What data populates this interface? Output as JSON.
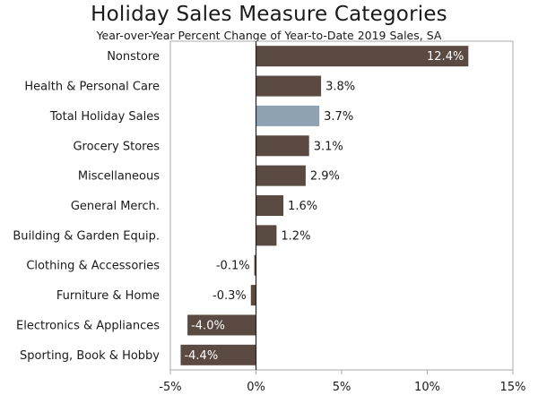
{
  "chart_data": {
    "type": "bar",
    "orientation": "horizontal",
    "title": "Holiday Sales Measure Categories",
    "subtitle": "Year-over-Year Percent Change of Year-to-Date 2019 Sales, SA",
    "categories": [
      "Nonstore",
      "Health & Personal Care",
      "Total Holiday Sales",
      "Grocery Stores",
      "Miscellaneous",
      "General Merch.",
      "Building & Garden Equip.",
      "Clothing & Accessories",
      "Furniture & Home",
      "Electronics & Appliances",
      "Sporting, Book & Hobby"
    ],
    "values": [
      12.4,
      3.8,
      3.7,
      3.1,
      2.9,
      1.6,
      1.2,
      -0.1,
      -0.3,
      -4.0,
      -4.4
    ],
    "data_labels": [
      "12.4%",
      "3.8%",
      "3.7%",
      "3.1%",
      "2.9%",
      "1.6%",
      "1.2%",
      "-0.1%",
      "-0.3%",
      "-4.0%",
      "-4.4%"
    ],
    "highlight_category": "Total Holiday Sales",
    "xlim": [
      -5,
      15
    ],
    "xticks": [
      -5,
      0,
      5,
      10,
      15
    ],
    "xtick_labels": [
      "-5%",
      "0%",
      "5%",
      "10%",
      "15%"
    ],
    "xlabel": "",
    "ylabel": "",
    "grid": false,
    "colors": {
      "bar": "#5a4a41",
      "highlight": "#8ea2b2",
      "frame": "#a8a8a8",
      "zero_line": "#222222"
    }
  }
}
